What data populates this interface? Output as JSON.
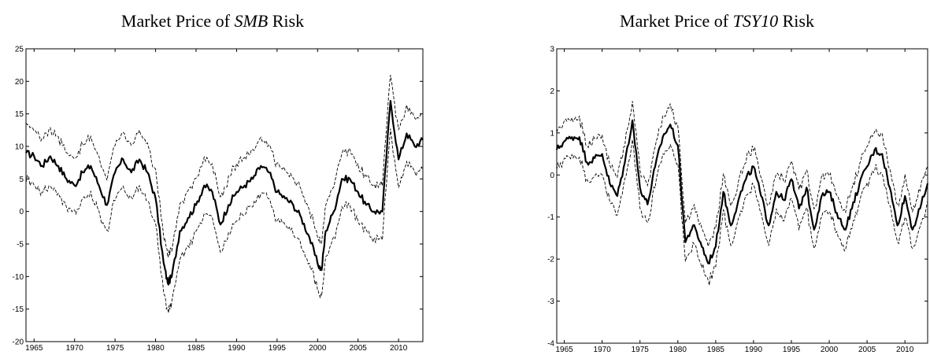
{
  "chart_data": [
    {
      "type": "line",
      "title_prefix": "Market Price of ",
      "title_symbol": "SMB",
      "title_suffix": " Risk",
      "xlim": [
        1964,
        2013
      ],
      "ylim": [
        -20,
        25
      ],
      "xticks": [
        1965,
        1970,
        1975,
        1980,
        1985,
        1990,
        1995,
        2000,
        2005,
        2010
      ],
      "yticks": [
        -20,
        -15,
        -10,
        -5,
        0,
        5,
        10,
        15,
        20,
        25
      ],
      "band": 4.2,
      "series": [
        {
          "style": "solid",
          "x": [
            1964,
            1965,
            1966,
            1967,
            1968,
            1969,
            1970,
            1971,
            1972,
            1973,
            1974,
            1975,
            1976,
            1977,
            1978,
            1979,
            1980,
            1981,
            1981.5,
            1982,
            1983,
            1984,
            1985,
            1986,
            1987,
            1988,
            1989,
            1990,
            1991,
            1992,
            1993,
            1994,
            1995,
            1996,
            1997,
            1998,
            1999,
            2000,
            2000.5,
            2001,
            2002,
            2003,
            2004,
            2005,
            2006,
            2007,
            2008,
            2009,
            2010,
            2011,
            2012,
            2013
          ],
          "y": [
            9,
            8.5,
            7,
            8.5,
            7,
            5,
            4,
            6,
            7,
            4,
            1,
            6,
            8,
            6,
            8,
            6,
            2,
            -8,
            -11,
            -10,
            -3,
            -1,
            1,
            4,
            3,
            -2,
            1,
            3,
            4,
            5,
            7,
            6,
            3,
            2,
            1,
            -1,
            -4,
            -8,
            -9,
            -3,
            0,
            5,
            5,
            3,
            1,
            0,
            0,
            17,
            8,
            12,
            10,
            11
          ]
        }
      ]
    },
    {
      "type": "line",
      "title_prefix": "Market Price of ",
      "title_symbol": "TSY10",
      "title_suffix": " Risk",
      "xlim": [
        1964,
        2013
      ],
      "ylim": [
        -4,
        3
      ],
      "xticks": [
        1965,
        1970,
        1975,
        1980,
        1985,
        1990,
        1995,
        2000,
        2005,
        2010
      ],
      "yticks": [
        -4,
        -3,
        -2,
        -1,
        0,
        1,
        2,
        3
      ],
      "band": 0.45,
      "series": [
        {
          "style": "solid",
          "x": [
            1964,
            1965,
            1966,
            1967,
            1968,
            1969,
            1970,
            1971,
            1972,
            1973,
            1974,
            1975,
            1976,
            1977,
            1978,
            1979,
            1980,
            1981,
            1982,
            1983,
            1984,
            1985,
            1986,
            1987,
            1988,
            1989,
            1990,
            1991,
            1992,
            1993,
            1994,
            1995,
            1996,
            1997,
            1998,
            1999,
            2000,
            2001,
            2002,
            2003,
            2004,
            2005,
            2006,
            2007,
            2008,
            2009,
            2010,
            2011,
            2012,
            2013
          ],
          "y": [
            0.6,
            0.8,
            0.9,
            0.9,
            0.3,
            0.4,
            0.5,
            -0.2,
            -0.5,
            0.3,
            1.3,
            -0.3,
            -0.7,
            0.2,
            0.9,
            1.2,
            0.7,
            -1.6,
            -1.2,
            -1.6,
            -2.1,
            -1.7,
            -0.4,
            -1.2,
            -0.6,
            -0.1,
            0.2,
            -0.5,
            -1.2,
            -0.4,
            -0.6,
            -0.1,
            -0.8,
            -0.3,
            -1.3,
            -0.5,
            -0.4,
            -0.9,
            -1.3,
            -0.8,
            -0.2,
            0.2,
            0.6,
            0.5,
            -0.3,
            -1.2,
            -0.5,
            -1.3,
            -0.8,
            -0.2
          ]
        }
      ]
    }
  ]
}
